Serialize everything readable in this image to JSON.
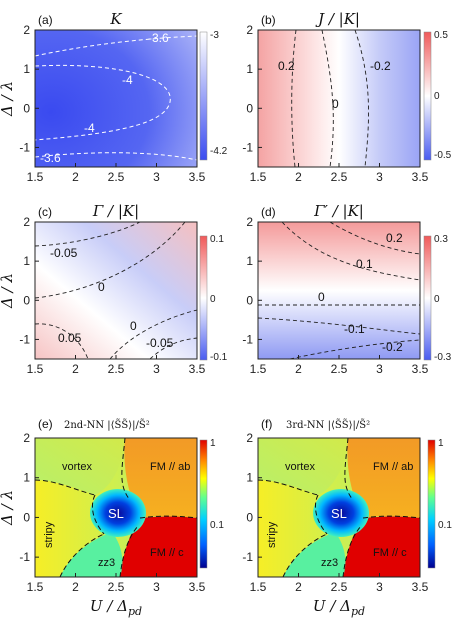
{
  "axes": {
    "x_label": "U / Δ",
    "x_label_sub": "pd",
    "y_label": "Δ / λ",
    "x_ticks": [
      1.5,
      2,
      2.5,
      3,
      3.5
    ],
    "x_tick_labels": [
      "1.5",
      "2",
      "2.5",
      "3",
      "3.5"
    ],
    "y_ticks": [
      -1,
      0,
      1,
      2
    ],
    "y_tick_labels": [
      "-1",
      "0",
      "1",
      "2"
    ],
    "xlim": [
      1.5,
      3.5
    ],
    "ylim": [
      -1.5,
      2
    ]
  },
  "chart_data": [
    {
      "type": "heatmap",
      "panel": "(a)",
      "title": "K",
      "colorbar": {
        "min": -4.2,
        "max": -3,
        "tick_labels": [
          "-3",
          "-4.2"
        ],
        "colors": [
          "#3b4cf0",
          "#ffffff"
        ]
      },
      "contour_labels": [
        "-3.6",
        "-4",
        "-4",
        "-3.6"
      ],
      "contour_style": "white-dashed"
    },
    {
      "type": "heatmap",
      "panel": "(b)",
      "title": "J / |K|",
      "colorbar": {
        "min": -0.5,
        "max": 0.5,
        "tick_labels": [
          "0.5",
          "0",
          "-0.5"
        ],
        "colors": [
          "#4a5cf0",
          "#ffffff",
          "#f05a5a"
        ]
      },
      "contour_labels": [
        "0.2",
        "0",
        "-0.2"
      ]
    },
    {
      "type": "heatmap",
      "panel": "(c)",
      "title": "Γ / |K|",
      "colorbar": {
        "min": -0.1,
        "max": 0.1,
        "tick_labels": [
          "0.1",
          "0",
          "-0.1"
        ],
        "colors": [
          "#4a5cf0",
          "#ffffff",
          "#f05a5a"
        ]
      },
      "contour_labels": [
        "-0.05",
        "0",
        "0.05",
        "0",
        "-0.05"
      ]
    },
    {
      "type": "heatmap",
      "panel": "(d)",
      "title": "Γ′ / |K|",
      "colorbar": {
        "min": -0.3,
        "max": 0.3,
        "tick_labels": [
          "0.3",
          "0",
          "-0.3"
        ],
        "colors": [
          "#4a5cf0",
          "#ffffff",
          "#f05a5a"
        ]
      },
      "contour_labels": [
        "0.2",
        "0.1",
        "0",
        "-0.1",
        "-0.2"
      ]
    },
    {
      "type": "heatmap",
      "panel": "(e)",
      "title": "2nd-NN  |⟨S̃S̃⟩|/S̃²",
      "colorbar": {
        "scale": "log",
        "tick_labels": [
          "1",
          "0.1"
        ],
        "colors": [
          "#00008f",
          "#0060ff",
          "#00d0ff",
          "#60ff90",
          "#ffff00",
          "#ff8000",
          "#e00000"
        ]
      },
      "regions": [
        "vortex",
        "FM // ab",
        "stripy",
        "SL",
        "zz3",
        "FM // c"
      ]
    },
    {
      "type": "heatmap",
      "panel": "(f)",
      "title": "3rd-NN  |⟨S̃S̃⟩|/S̃²",
      "colorbar": {
        "scale": "log",
        "tick_labels": [
          "1",
          "0.1"
        ],
        "colors": [
          "#00008f",
          "#0060ff",
          "#00d0ff",
          "#60ff90",
          "#ffff00",
          "#ff8000",
          "#e00000"
        ]
      },
      "regions": [
        "vortex",
        "FM // ab",
        "stripy",
        "SL",
        "zz3",
        "FM // c"
      ]
    }
  ]
}
